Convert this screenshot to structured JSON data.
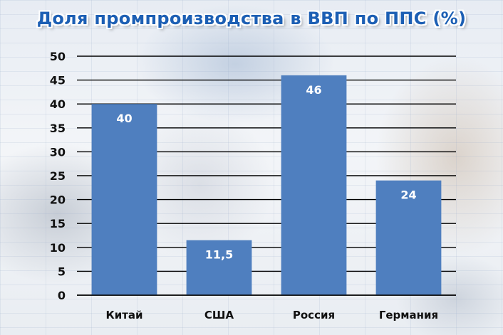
{
  "chart_data": {
    "type": "bar",
    "title": "Доля промпроизводства в ВВП по ППС (%)",
    "categories": [
      "Китай",
      "США",
      "Россия",
      "Германия"
    ],
    "values": [
      40,
      11.5,
      46,
      24
    ],
    "data_labels": [
      "40",
      "11,5",
      "46",
      "24"
    ],
    "ylim": [
      0,
      50
    ],
    "yticks": [
      0,
      5,
      10,
      15,
      20,
      25,
      30,
      35,
      40,
      45,
      50
    ],
    "grid": true,
    "bar_color": "#4f7fbf",
    "title_color": "#1c5fb4"
  }
}
